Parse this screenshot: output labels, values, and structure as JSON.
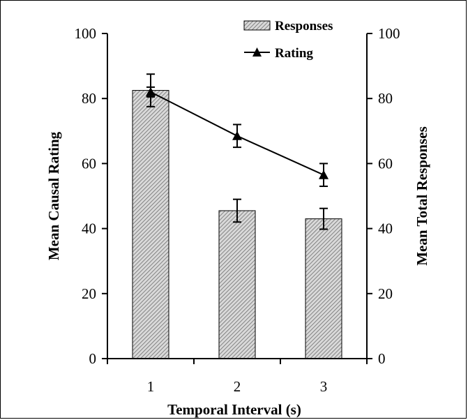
{
  "chart_data": {
    "type": "bar",
    "categories": [
      "1",
      "2",
      "3"
    ],
    "xlabel": "Temporal Interval (s)",
    "ylabel_left": "Mean Causal Rating",
    "ylabel_right": "Mean Total Responses",
    "ylim": [
      0,
      100
    ],
    "yticks": [
      "0",
      "20",
      "40",
      "60",
      "80",
      "100"
    ],
    "grid": false,
    "legend_position": "top-right",
    "series": [
      {
        "name": "Responses",
        "type": "bar",
        "axis": "right",
        "values": [
          82.5,
          45.5,
          43.0
        ],
        "error": [
          5.0,
          3.5,
          3.2
        ],
        "color": "#bdbdbd",
        "pattern": "diagonal-hatch"
      },
      {
        "name": "Rating",
        "type": "line",
        "axis": "left",
        "marker": "triangle",
        "values": [
          82.0,
          68.5,
          56.5
        ],
        "error": [
          1.5,
          3.5,
          3.5
        ],
        "color": "#000000"
      }
    ]
  }
}
